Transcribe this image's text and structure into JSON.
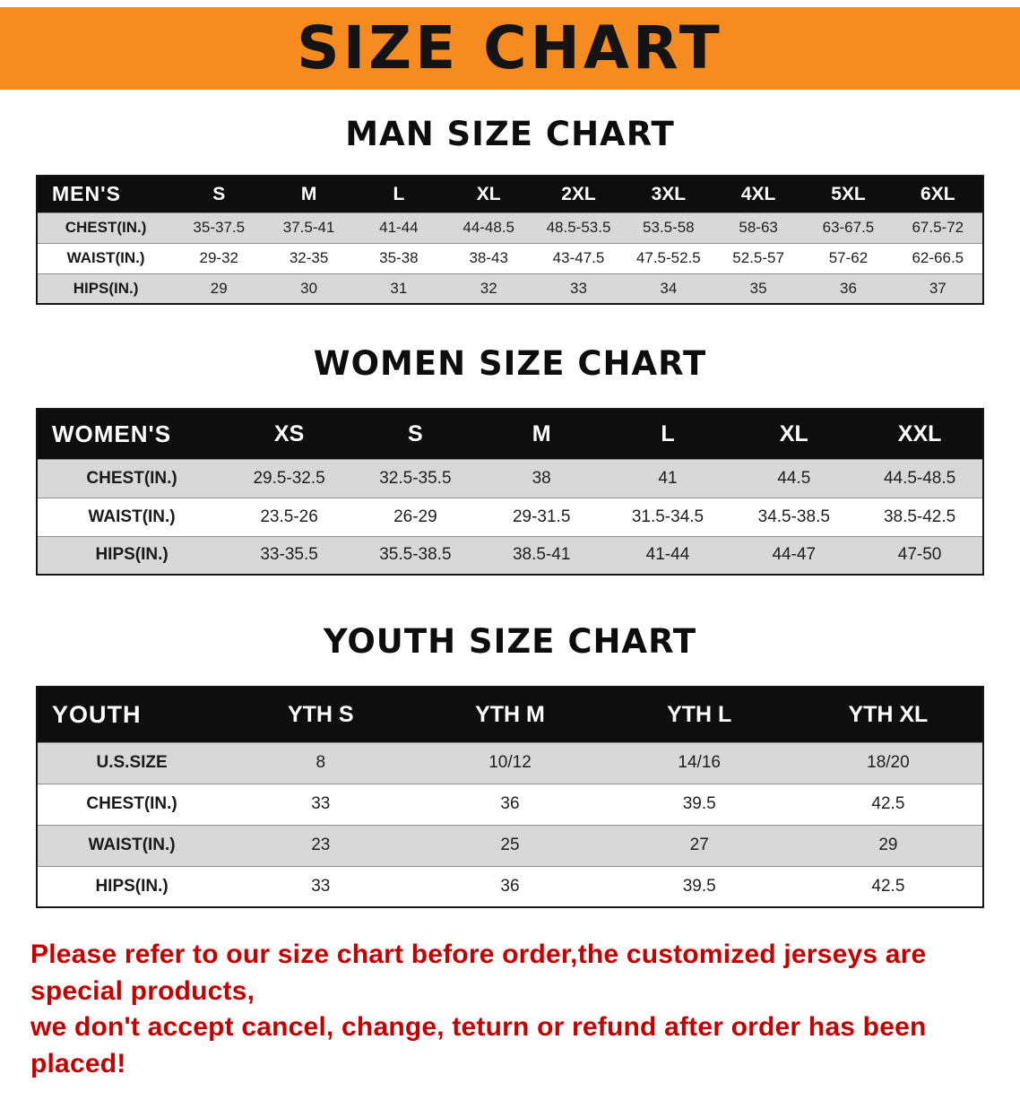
{
  "banner": {
    "title": "SIZE CHART"
  },
  "colors": {
    "banner_orange": "#F68B1F",
    "header_black": "#0E0E0E",
    "row_gray": "#D8D8D8",
    "footer_red": "#C40000"
  },
  "sections": [
    {
      "heading": "MAN SIZE CHART",
      "table": {
        "title": "MEN'S",
        "columns": [
          "S",
          "M",
          "L",
          "XL",
          "2XL",
          "3XL",
          "4XL",
          "5XL",
          "6XL"
        ],
        "rows": [
          {
            "label": "CHEST(IN.)",
            "values": [
              "35-37.5",
              "37.5-41",
              "41-44",
              "44-48.5",
              "48.5-53.5",
              "53.5-58",
              "58-63",
              "63-67.5",
              "67.5-72"
            ]
          },
          {
            "label": "WAIST(IN.)",
            "values": [
              "29-32",
              "32-35",
              "35-38",
              "38-43",
              "43-47.5",
              "47.5-52.5",
              "52.5-57",
              "57-62",
              "62-66.5"
            ]
          },
          {
            "label": "HIPS(IN.)",
            "values": [
              "29",
              "30",
              "31",
              "32",
              "33",
              "34",
              "35",
              "36",
              "37"
            ]
          }
        ]
      }
    },
    {
      "heading": "WOMEN SIZE CHART",
      "table": {
        "title": "WOMEN'S",
        "columns": [
          "XS",
          "S",
          "M",
          "L",
          "XL",
          "XXL"
        ],
        "rows": [
          {
            "label": "CHEST(IN.)",
            "values": [
              "29.5-32.5",
              "32.5-35.5",
              "38",
              "41",
              "44.5",
              "44.5-48.5"
            ]
          },
          {
            "label": "WAIST(IN.)",
            "values": [
              "23.5-26",
              "26-29",
              "29-31.5",
              "31.5-34.5",
              "34.5-38.5",
              "38.5-42.5"
            ]
          },
          {
            "label": "HIPS(IN.)",
            "values": [
              "33-35.5",
              "35.5-38.5",
              "38.5-41",
              "41-44",
              "44-47",
              "47-50"
            ]
          }
        ]
      }
    },
    {
      "heading": "YOUTH SIZE CHART",
      "table": {
        "title": "YOUTH",
        "columns": [
          "YTH S",
          "YTH M",
          "YTH L",
          "YTH XL"
        ],
        "rows": [
          {
            "label": "U.S.SIZE",
            "values": [
              "8",
              "10/12",
              "14/16",
              "18/20"
            ]
          },
          {
            "label": "CHEST(IN.)",
            "values": [
              "33",
              "36",
              "39.5",
              "42.5"
            ]
          },
          {
            "label": "WAIST(IN.)",
            "values": [
              "23",
              "25",
              "27",
              "29"
            ]
          },
          {
            "label": "HIPS(IN.)",
            "values": [
              "33",
              "36",
              "39.5",
              "42.5"
            ]
          }
        ]
      }
    }
  ],
  "footer": {
    "line1": "Please refer to our size chart before order,the customized jerseys are special products,",
    "line2": "we don't accept cancel, change, teturn or refund after order has been placed!"
  }
}
